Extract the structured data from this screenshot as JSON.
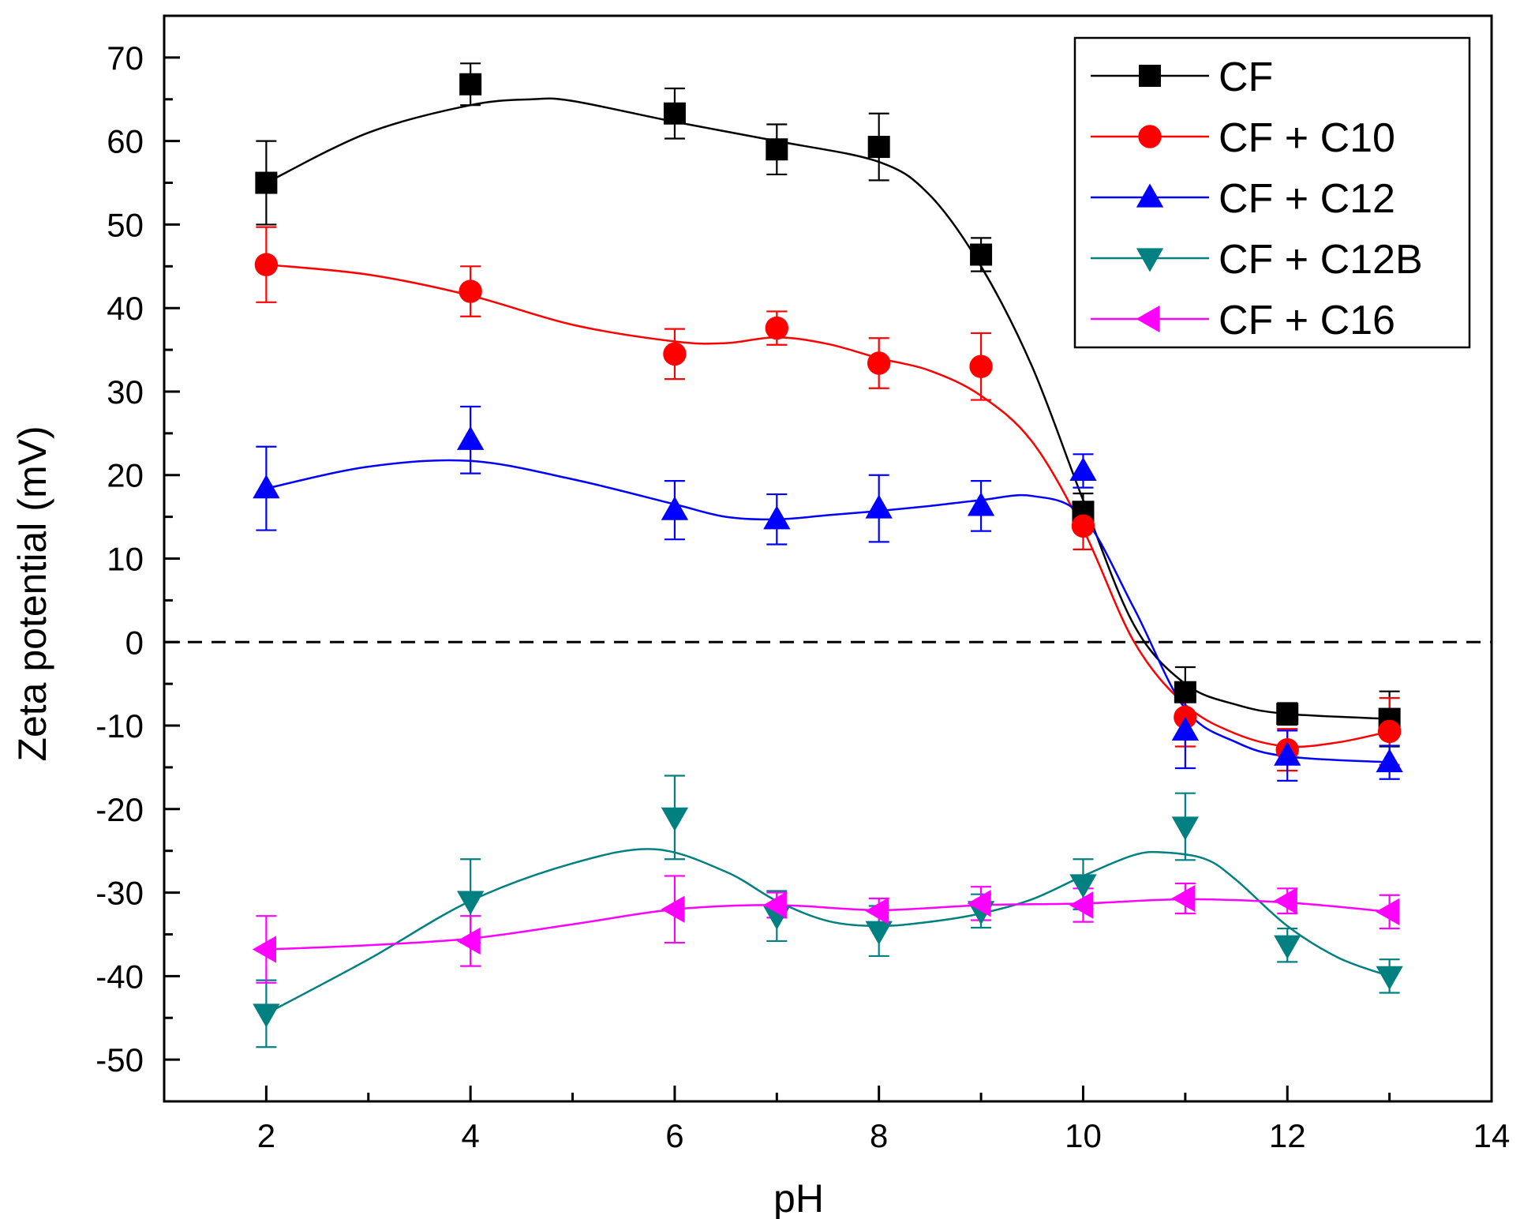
{
  "chart_data": {
    "type": "scatter",
    "title": "",
    "xlabel": "pH",
    "ylabel": "Zeta potential (mV)",
    "xlim": [
      1,
      14
    ],
    "ylim": [
      -55,
      75
    ],
    "xticks": [
      2,
      4,
      6,
      8,
      10,
      12,
      14
    ],
    "yticks": [
      -50,
      -40,
      -30,
      -20,
      -10,
      0,
      10,
      20,
      30,
      40,
      50,
      60,
      70
    ],
    "reference_line": {
      "y": 0,
      "style": "dashed"
    },
    "legend_position": "top-right",
    "series": [
      {
        "name": "CF",
        "color": "#000000",
        "marker": "square",
        "x": [
          2,
          4,
          6,
          7,
          8,
          9,
          10,
          11,
          12,
          13
        ],
        "y": [
          55,
          66.8,
          63.3,
          59,
          59.3,
          46.4,
          15.6,
          -6,
          -8.6,
          -9.2
        ],
        "err": [
          5,
          2.5,
          3,
          3,
          4,
          2,
          2.2,
          3,
          1.3,
          3.3
        ],
        "curve": [
          [
            2,
            55
          ],
          [
            3,
            61
          ],
          [
            4,
            64.3
          ],
          [
            4.6,
            65
          ],
          [
            5,
            64.8
          ],
          [
            6,
            62.3
          ],
          [
            7,
            60
          ],
          [
            8,
            57.5
          ],
          [
            8.5,
            53.5
          ],
          [
            9,
            45
          ],
          [
            9.5,
            33
          ],
          [
            10,
            17
          ],
          [
            10.5,
            2
          ],
          [
            11,
            -5
          ],
          [
            11.5,
            -7.5
          ],
          [
            12,
            -8.6
          ],
          [
            13,
            -9.2
          ]
        ]
      },
      {
        "name": "CF + C10",
        "color": "#ff0000",
        "marker": "circle",
        "x": [
          2,
          4,
          6,
          7,
          8,
          9,
          10,
          11,
          12,
          13
        ],
        "y": [
          45.2,
          42,
          34.5,
          37.6,
          33.4,
          33,
          13.9,
          -9,
          -12.9,
          -10.7
        ],
        "err": [
          4.5,
          3,
          3,
          2,
          3,
          4,
          2.8,
          3.5,
          2.5,
          4
        ],
        "curve": [
          [
            2,
            45.2
          ],
          [
            3,
            44
          ],
          [
            4,
            41.5
          ],
          [
            5,
            38
          ],
          [
            6,
            36
          ],
          [
            6.5,
            35.8
          ],
          [
            7,
            36.5
          ],
          [
            7.5,
            35.7
          ],
          [
            8,
            34
          ],
          [
            8.5,
            32.5
          ],
          [
            9,
            29.5
          ],
          [
            9.5,
            24
          ],
          [
            10,
            13.5
          ],
          [
            10.5,
            0
          ],
          [
            11,
            -7.5
          ],
          [
            11.5,
            -11
          ],
          [
            12,
            -12.5
          ],
          [
            12.5,
            -12
          ],
          [
            13,
            -10.7
          ]
        ]
      },
      {
        "name": "CF + C12",
        "color": "#0000ff",
        "marker": "triangle-up",
        "x": [
          2,
          4,
          6,
          7,
          8,
          9,
          10,
          11,
          12,
          13
        ],
        "y": [
          18.4,
          24.2,
          15.8,
          14.7,
          16,
          16.3,
          20.5,
          -10.6,
          -13.6,
          -14.4
        ],
        "err": [
          5,
          4,
          3.5,
          3,
          4,
          3,
          2,
          4.5,
          3,
          2
        ],
        "curve": [
          [
            2,
            18.4
          ],
          [
            3,
            21
          ],
          [
            4,
            21.7
          ],
          [
            5,
            19.5
          ],
          [
            6,
            16.5
          ],
          [
            6.5,
            15
          ],
          [
            7,
            14.7
          ],
          [
            7.5,
            15.2
          ],
          [
            8,
            15.7
          ],
          [
            8.5,
            16.3
          ],
          [
            9,
            17
          ],
          [
            9.5,
            17.5
          ],
          [
            10,
            15
          ],
          [
            10.5,
            4
          ],
          [
            11,
            -8
          ],
          [
            11.5,
            -12
          ],
          [
            12,
            -13.7
          ],
          [
            13,
            -14.4
          ]
        ]
      },
      {
        "name": "CF + C12B",
        "color": "#008080",
        "marker": "triangle-down",
        "x": [
          2,
          4,
          6,
          7,
          8,
          9,
          10,
          11,
          12,
          13
        ],
        "y": [
          -44.5,
          -31,
          -21,
          -32.8,
          -34.6,
          -32.2,
          -29,
          -22.1,
          -36.3,
          -40
        ],
        "err": [
          4,
          5,
          5,
          3,
          3,
          2,
          3,
          4,
          2,
          2
        ],
        "curve": [
          [
            2,
            -44.5
          ],
          [
            3,
            -38
          ],
          [
            4,
            -31
          ],
          [
            5,
            -26.5
          ],
          [
            5.8,
            -24.8
          ],
          [
            6.5,
            -27.5
          ],
          [
            7,
            -31
          ],
          [
            7.5,
            -33.4
          ],
          [
            8,
            -34
          ],
          [
            8.5,
            -33.5
          ],
          [
            9,
            -32.5
          ],
          [
            9.5,
            -30.8
          ],
          [
            10,
            -28
          ],
          [
            10.5,
            -25.5
          ],
          [
            10.8,
            -25.2
          ],
          [
            11.2,
            -26
          ],
          [
            11.5,
            -28.5
          ],
          [
            12,
            -34
          ],
          [
            12.5,
            -37.8
          ],
          [
            13,
            -40
          ]
        ]
      },
      {
        "name": "CF + C16",
        "color": "#ff00ff",
        "marker": "triangle-left",
        "x": [
          2,
          4,
          6,
          7,
          8,
          9,
          10,
          11,
          12,
          13
        ],
        "y": [
          -36.8,
          -35.8,
          -32,
          -31.5,
          -32.2,
          -31.3,
          -31.5,
          -30.7,
          -31,
          -32.3
        ],
        "err": [
          4,
          3,
          4,
          1.5,
          1.5,
          2,
          2,
          1.8,
          1.5,
          2
        ],
        "curve": [
          [
            2,
            -36.8
          ],
          [
            3,
            -36.3
          ],
          [
            4,
            -35.5
          ],
          [
            5,
            -33.8
          ],
          [
            6,
            -32
          ],
          [
            7,
            -31.5
          ],
          [
            8,
            -32.1
          ],
          [
            9,
            -31.5
          ],
          [
            10,
            -31.3
          ],
          [
            11,
            -30.8
          ],
          [
            12,
            -31.2
          ],
          [
            13,
            -32.3
          ]
        ]
      }
    ]
  }
}
